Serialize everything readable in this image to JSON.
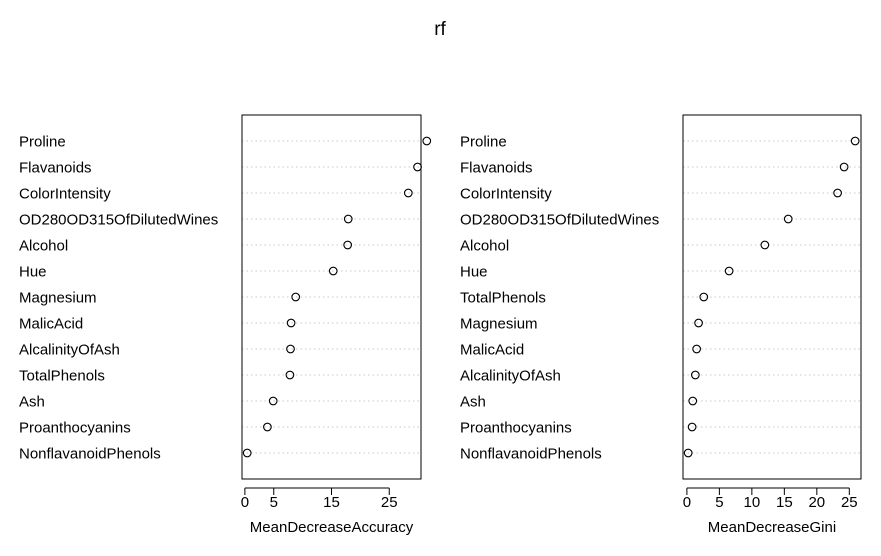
{
  "title": "rf",
  "chart_data": [
    {
      "type": "scatter",
      "subtype": "dotchart",
      "xlabel": "MeanDecreaseAccuracy",
      "xlim": [
        -0.5,
        30.5
      ],
      "xticks": [
        0,
        5,
        15,
        25
      ],
      "grid": "dotted-horizontal",
      "categories": [
        "Proline",
        "Flavanoids",
        "ColorIntensity",
        "OD280OD315OfDilutedWines",
        "Alcohol",
        "Hue",
        "Magnesium",
        "MalicAcid",
        "AlcalinityOfAsh",
        "TotalPhenols",
        "Ash",
        "Proanthocyanins",
        "NonflavanoidPhenols"
      ],
      "values": [
        31.5,
        29.9,
        28.3,
        17.9,
        17.8,
        15.3,
        8.8,
        8.0,
        7.9,
        7.8,
        4.9,
        3.9,
        0.4
      ]
    },
    {
      "type": "scatter",
      "subtype": "dotchart",
      "xlabel": "MeanDecreaseGini",
      "xlim": [
        -0.6,
        26.8
      ],
      "xticks": [
        0,
        5,
        10,
        15,
        20,
        25
      ],
      "grid": "dotted-horizontal",
      "categories": [
        "Proline",
        "Flavanoids",
        "ColorIntensity",
        "OD280OD315OfDilutedWines",
        "Alcohol",
        "Hue",
        "TotalPhenols",
        "Magnesium",
        "MalicAcid",
        "AlcalinityOfAsh",
        "Ash",
        "Proanthocyanins",
        "NonflavanoidPhenols"
      ],
      "values": [
        25.9,
        24.2,
        23.2,
        15.6,
        12.0,
        6.5,
        2.6,
        1.8,
        1.5,
        1.3,
        0.9,
        0.8,
        0.2
      ]
    }
  ]
}
